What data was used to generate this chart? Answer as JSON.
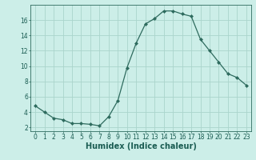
{
  "x": [
    0,
    1,
    2,
    3,
    4,
    5,
    6,
    7,
    8,
    9,
    10,
    11,
    12,
    13,
    14,
    15,
    16,
    17,
    18,
    19,
    20,
    21,
    22,
    23
  ],
  "y": [
    4.8,
    4.0,
    3.2,
    3.0,
    2.5,
    2.5,
    2.4,
    2.2,
    3.4,
    5.5,
    9.8,
    13.0,
    15.5,
    16.2,
    17.2,
    17.2,
    16.8,
    16.5,
    13.5,
    12.0,
    10.5,
    9.0,
    8.5,
    7.5
  ],
  "line_color": "#2e6b5e",
  "marker": "D",
  "marker_size": 2.0,
  "bg_color": "#cceee8",
  "grid_color": "#aad4cc",
  "xlabel": "Humidex (Indice chaleur)",
  "xlabel_fontsize": 7,
  "ytick_labels": [
    "2",
    "4",
    "6",
    "8",
    "10",
    "12",
    "14",
    "16"
  ],
  "ytick_vals": [
    2,
    4,
    6,
    8,
    10,
    12,
    14,
    16
  ],
  "xtick_vals": [
    0,
    1,
    2,
    3,
    4,
    5,
    6,
    7,
    8,
    9,
    10,
    11,
    12,
    13,
    14,
    15,
    16,
    17,
    18,
    19,
    20,
    21,
    22,
    23
  ],
  "ylim": [
    1.5,
    18.0
  ],
  "xlim": [
    -0.5,
    23.5
  ],
  "tick_fontsize": 5.5,
  "label_color": "#1a5c52"
}
